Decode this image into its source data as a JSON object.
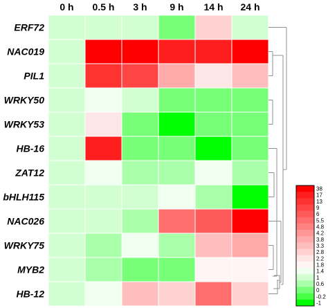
{
  "chart_data": {
    "type": "heatmap",
    "columns": [
      "0 h",
      "0.5 h",
      "3 h",
      "9 h",
      "14 h",
      "24 h"
    ],
    "rows": [
      "ERF72",
      "NAC019",
      "PIL1",
      "WRKY50",
      "WRKY53",
      "HB-16",
      "ZAT12",
      "bHLH115",
      "NAC026",
      "WRKY75",
      "MYB2",
      "HB-12"
    ],
    "values": [
      [
        1,
        1,
        1,
        0.2,
        2.8,
        1
      ],
      [
        1,
        38,
        38,
        17,
        17,
        38
      ],
      [
        1,
        13,
        9,
        3.8,
        2.2,
        3.3
      ],
      [
        1,
        1.4,
        1,
        0,
        0,
        0
      ],
      [
        1,
        2.2,
        0.2,
        -1,
        0,
        0
      ],
      [
        1,
        17,
        0,
        0,
        -1,
        0
      ],
      [
        1,
        1.4,
        0.6,
        0.6,
        1.4,
        0.6
      ],
      [
        1,
        1,
        1,
        1.4,
        0.6,
        -1
      ],
      [
        1,
        1,
        0.6,
        5.5,
        6,
        38
      ],
      [
        1,
        0.6,
        1.4,
        0.6,
        3.3,
        3.8
      ],
      [
        1,
        0.6,
        0.2,
        0,
        1.8,
        1.8
      ],
      [
        1,
        1.4,
        3.3,
        2.8,
        5.5,
        2.8
      ]
    ],
    "legend": {
      "position": "right",
      "ticks": [
        "38",
        "17",
        "13",
        "9",
        "6",
        "5.5",
        "4.8",
        "4.2",
        "3.8",
        "3.3",
        "2.8",
        "2.2",
        "1.8",
        "1.4",
        "1",
        "0.6",
        "0",
        "-0.2",
        "-1"
      ],
      "colors": [
        "#ff0000",
        "#ff1e1e",
        "#ff3232",
        "#ff4646",
        "#ff5a5a",
        "#ff6e6e",
        "#ff8282",
        "#ff9696",
        "#ffaaaa",
        "#ffbebe",
        "#ffd2d2",
        "#ffe6e6",
        "#fff5f5",
        "#f0fff0",
        "#d2ffd2",
        "#aaffaa",
        "#78ff78",
        "#46ff46",
        "#00ff00"
      ]
    },
    "dendrogram": "right"
  }
}
